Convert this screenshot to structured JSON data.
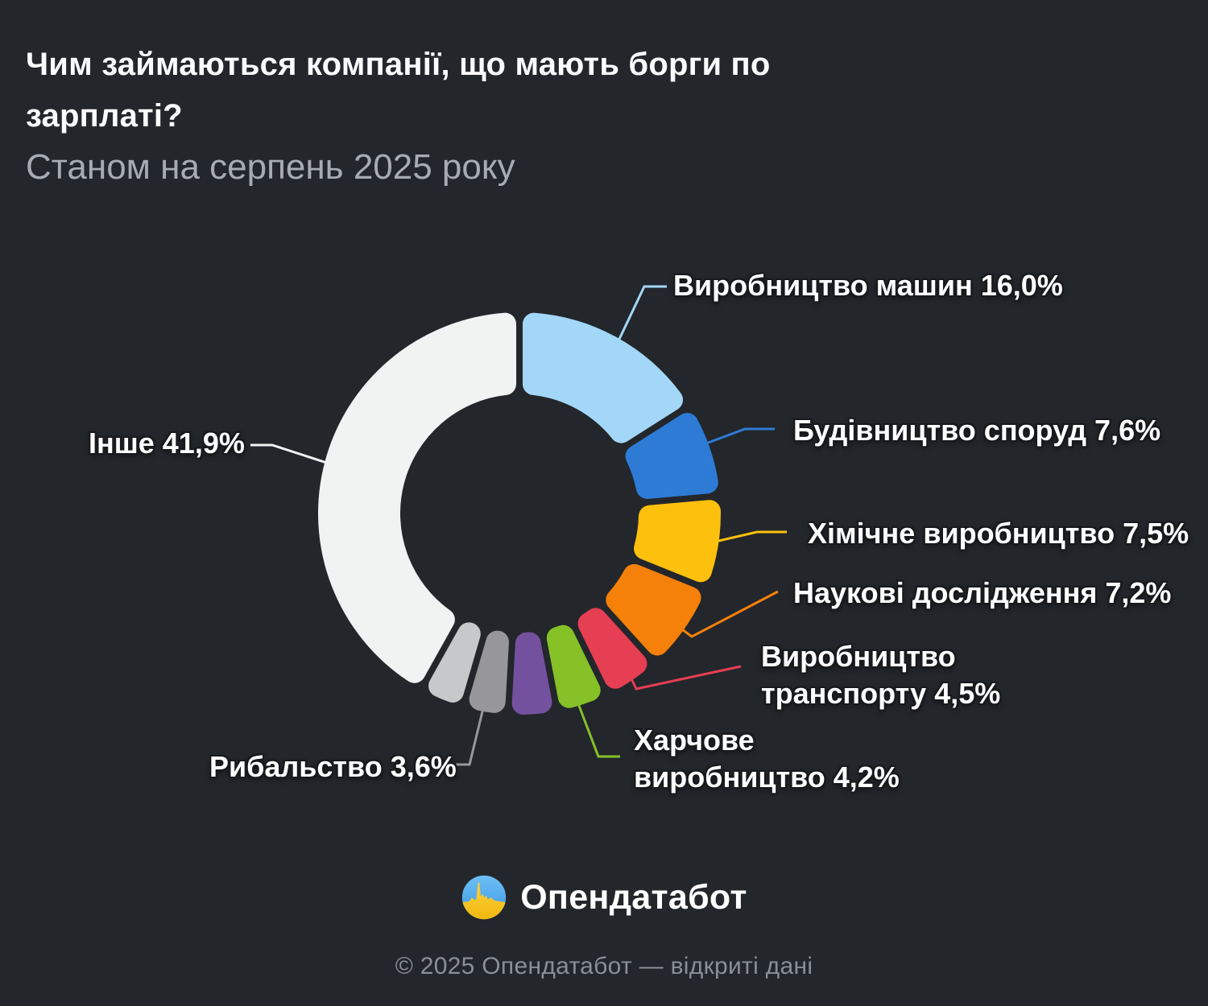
{
  "header": {
    "title": "Чим займаються компанії, що мають борги по\nзарплаті?",
    "subtitle": "Станом на серпень 2025 року"
  },
  "brand": {
    "name": "Опендатабот",
    "logo": "opendatabot-logo"
  },
  "footer": {
    "text": "© 2025 Опендатабот — відкриті дані"
  },
  "colors": {
    "background": "#23262b",
    "title_text": "#fafbfc",
    "subtitle_text": "#a7acb3",
    "label_text": "#ffffff",
    "footer_text": "#8a9096",
    "logo_sky": "#4fa9ec",
    "logo_sun": "#f7c21a"
  },
  "chart_data": {
    "type": "pie",
    "subtype": "donut",
    "title": "Чим займаються компанії, що мають борги по зарплаті?",
    "as_of_label": "Станом на серпень 2025 року",
    "unit": "%",
    "direction": "clockwise",
    "start_angle_deg": 0,
    "inner_radius_ratio": 0.6,
    "legend_position": "callout-labels",
    "slices": [
      {
        "id": "machines",
        "label": "Виробництво машин",
        "value": 16.0,
        "display": "Виробництво машин 16,0%",
        "color": "#a3d7f8"
      },
      {
        "id": "construction",
        "label": "Будівництво споруд",
        "value": 7.6,
        "display": "Будівництво споруд 7,6%",
        "color": "#2e7bd6"
      },
      {
        "id": "chemical",
        "label": "Хімічне виробництво",
        "value": 7.5,
        "display": "Хімічне виробництво 7,5%",
        "color": "#fdc00d"
      },
      {
        "id": "research",
        "label": "Наукові дослідження",
        "value": 7.2,
        "display": "Наукові дослідження 7,2%",
        "color": "#f5810a"
      },
      {
        "id": "transport",
        "label": "Виробництво транспорту",
        "value": 4.5,
        "display": "Виробництво\nтранспорту 4,5%",
        "color": "#e63e52"
      },
      {
        "id": "food",
        "label": "Харчове виробництво",
        "value": 4.2,
        "display": "Харчове\nвиробництво 4,2%",
        "color": "#85c127"
      },
      {
        "id": "unlabeled-a",
        "label": "",
        "value": 3.9,
        "display": "",
        "color": "#74519f",
        "estimated": true
      },
      {
        "id": "fishing",
        "label": "Рибальство",
        "value": 3.6,
        "display": "Рибальство 3,6%",
        "color": "#97979a"
      },
      {
        "id": "unlabeled-b",
        "label": "",
        "value": 3.6,
        "display": "",
        "color": "#c7c8c9",
        "estimated": true
      },
      {
        "id": "other",
        "label": "Інше",
        "value": 41.9,
        "display": "Інше 41,9%",
        "color": "#f1f2f2"
      }
    ]
  }
}
